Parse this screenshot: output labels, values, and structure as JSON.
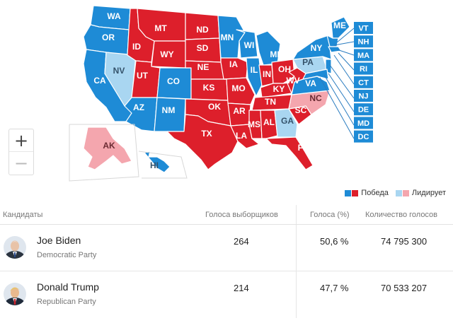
{
  "colors": {
    "dem_win": "#1e8bd6",
    "rep_win": "#dd1f2b",
    "dem_lead": "#a9d6f1",
    "rep_lead": "#f4a6ae",
    "label": "#ffffff"
  },
  "map": {
    "states_dem": [
      "WA",
      "OR",
      "CA",
      "CO",
      "NM",
      "AZ",
      "MN",
      "WI",
      "MI",
      "IL",
      "VA",
      "NY",
      "ME",
      "VT",
      "NH",
      "MA",
      "RI",
      "CT",
      "NJ",
      "DE",
      "MD",
      "DC",
      "HI"
    ],
    "states_rep": [
      "MT",
      "ND",
      "ID",
      "WY",
      "SD",
      "UT",
      "NE",
      "KS",
      "IA",
      "MO",
      "OK",
      "AR",
      "TX",
      "LA",
      "MS",
      "AL",
      "TN",
      "KY",
      "IN",
      "OH",
      "WV",
      "SC",
      "FL"
    ],
    "states_dem_lead": [
      "NV",
      "PA",
      "GA"
    ],
    "states_rep_lead": [
      "NC",
      "AK"
    ],
    "labels": {
      "WA": "WA",
      "OR": "OR",
      "CA": "CA",
      "NV": "NV",
      "ID": "ID",
      "MT": "MT",
      "WY": "WY",
      "UT": "UT",
      "AZ": "AZ",
      "CO": "CO",
      "NM": "NM",
      "ND": "ND",
      "SD": "SD",
      "NE": "NE",
      "KS": "KS",
      "OK": "OK",
      "TX": "TX",
      "MN": "MN",
      "IA": "IA",
      "MO": "MO",
      "AR": "AR",
      "LA": "LA",
      "WI": "WI",
      "IL": "IL",
      "MI": "MI",
      "IN": "IN",
      "OH": "OH",
      "KY": "KY",
      "TN": "TN",
      "MS": "MS",
      "AL": "AL",
      "GA": "GA",
      "FL": "FL",
      "SC": "SC",
      "NC": "NC",
      "VA": "VA",
      "WV": "WV",
      "PA": "PA",
      "NY": "NY",
      "ME": "ME",
      "AK": "AK",
      "HI": "HI"
    },
    "side_boxes": [
      {
        "code": "VT",
        "party": "dem"
      },
      {
        "code": "NH",
        "party": "dem"
      },
      {
        "code": "MA",
        "party": "dem"
      },
      {
        "code": "RI",
        "party": "dem"
      },
      {
        "code": "CT",
        "party": "dem"
      },
      {
        "code": "NJ",
        "party": "dem"
      },
      {
        "code": "DE",
        "party": "dem"
      },
      {
        "code": "MD",
        "party": "dem"
      },
      {
        "code": "DC",
        "party": "dem"
      }
    ]
  },
  "zoom": {
    "in_label": "+",
    "out_label": "−"
  },
  "legend": {
    "win_label": "Победа",
    "lead_label": "Лидирует"
  },
  "table": {
    "headers": {
      "candidates": "Кандидаты",
      "electoral": "Голоса выборщиков",
      "percent": "Голоса (%)",
      "votes": "Количество голосов"
    },
    "rows": [
      {
        "name": "Joe Biden",
        "party": "Democratic Party",
        "electoral": "264",
        "percent": "50,6 %",
        "votes": "74 795 300"
      },
      {
        "name": "Donald Trump",
        "party": "Republican Party",
        "electoral": "214",
        "percent": "47,7 %",
        "votes": "70 533 207"
      }
    ]
  }
}
